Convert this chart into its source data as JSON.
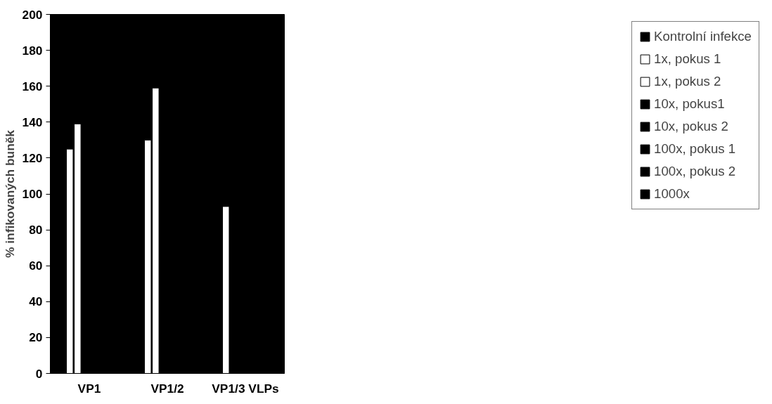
{
  "chart_data": {
    "type": "bar",
    "ylabel": "% infikovaných buněk",
    "categories": [
      "VP1",
      "VP1/2",
      "VP1/3 VLPs"
    ],
    "series": [
      {
        "name": "Kontrolní infekce",
        "color": "#000000",
        "values": [
          null,
          null,
          null
        ]
      },
      {
        "name": "1x, pokus 1",
        "color": "#ffffff",
        "values": [
          125,
          130,
          93
        ]
      },
      {
        "name": "1x, pokus 2",
        "color": "#ffffff",
        "values": [
          139,
          159,
          null
        ]
      },
      {
        "name": "10x, pokus1",
        "color": "#000000",
        "values": [
          null,
          null,
          null
        ]
      },
      {
        "name": "10x, pokus 2",
        "color": "#000000",
        "values": [
          null,
          null,
          null
        ]
      },
      {
        "name": "100x, pokus 1",
        "color": "#000000",
        "values": [
          null,
          null,
          null
        ]
      },
      {
        "name": "100x, pokus 2",
        "color": "#000000",
        "values": [
          null,
          null,
          null
        ]
      },
      {
        "name": "1000x",
        "color": "#000000",
        "values": [
          null,
          null,
          null
        ]
      }
    ],
    "ylim": [
      0,
      200
    ],
    "yticks": [
      0,
      20,
      40,
      60,
      80,
      100,
      120,
      140,
      160,
      180,
      200
    ],
    "grid": false,
    "legend": "right"
  }
}
